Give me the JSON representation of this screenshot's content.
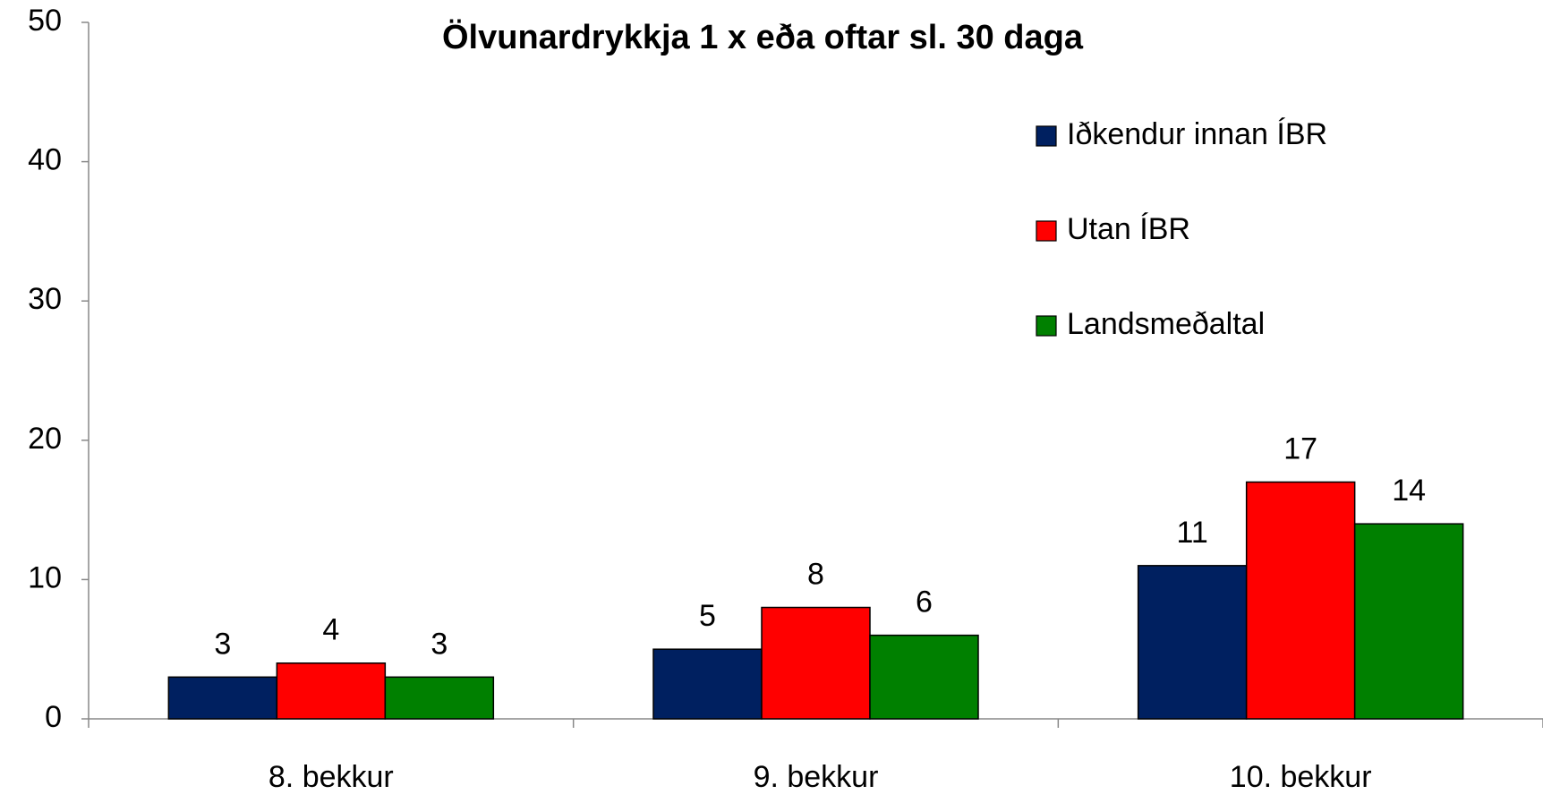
{
  "chart_data": {
    "type": "bar",
    "title": "Ölvunardrykkja  1 x eða oftar sl. 30 daga",
    "categories": [
      "8. bekkur",
      "9. bekkur",
      "10. bekkur"
    ],
    "series": [
      {
        "name": "Iðkendur innan ÍBR",
        "color": "#002060",
        "values": [
          3,
          5,
          11
        ]
      },
      {
        "name": "Utan ÍBR",
        "color": "#ff0000",
        "values": [
          4,
          8,
          17
        ]
      },
      {
        "name": "Landsmeðaltal",
        "color": "#008000",
        "values": [
          3,
          6,
          14
        ]
      }
    ],
    "ylim": [
      0,
      50
    ],
    "yticks": [
      0,
      10,
      20,
      30,
      40,
      50
    ],
    "legend": "upper right"
  }
}
